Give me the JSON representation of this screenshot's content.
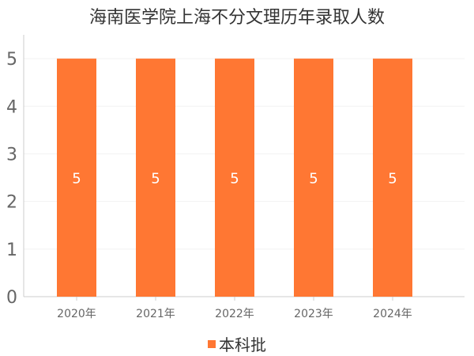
{
  "chart_data": {
    "type": "bar",
    "title": "海南医学院上海不分文理历年录取人数",
    "categories": [
      "2020年",
      "2021年",
      "2022年",
      "2023年",
      "2024年"
    ],
    "series": [
      {
        "name": "本科批",
        "values": [
          5,
          5,
          5,
          5,
          5
        ],
        "color": "#ff7733"
      }
    ],
    "data_labels": [
      "5",
      "5",
      "5",
      "5",
      "5"
    ],
    "y_ticks": [
      "0",
      "1",
      "2",
      "3",
      "4",
      "5"
    ],
    "ylim": [
      0,
      5.5
    ],
    "grid": true,
    "legend_position": "bottom"
  }
}
